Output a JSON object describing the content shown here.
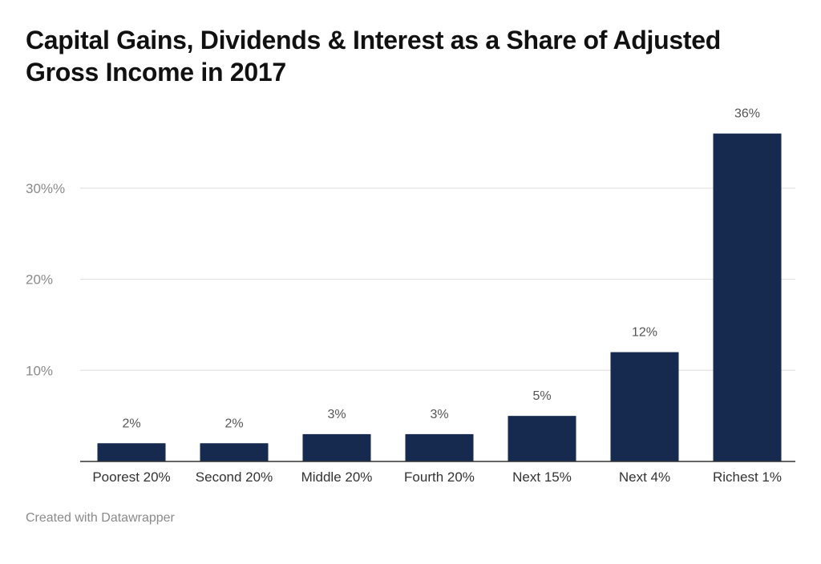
{
  "chart_data": {
    "type": "bar",
    "title": "Capital Gains, Dividends & Interest as a Share of Adjusted Gross Income in 2017",
    "xlabel": "",
    "ylabel": "",
    "categories": [
      "Poorest 20%",
      "Second 20%",
      "Middle 20%",
      "Fourth 20%",
      "Next 15%",
      "Next 4%",
      "Richest 1%"
    ],
    "values": [
      2,
      2,
      3,
      3,
      5,
      12,
      36
    ],
    "value_labels": [
      "2%",
      "2%",
      "3%",
      "3%",
      "5%",
      "12%",
      "36%"
    ],
    "yticks": [
      {
        "value": 10,
        "label": "10%"
      },
      {
        "value": 20,
        "label": "20%"
      },
      {
        "value": 30,
        "label": "30%%"
      }
    ],
    "ylim": [
      0,
      40
    ],
    "grid": true,
    "bar_color": "#152a4e"
  },
  "credit": "Created with Datawrapper"
}
